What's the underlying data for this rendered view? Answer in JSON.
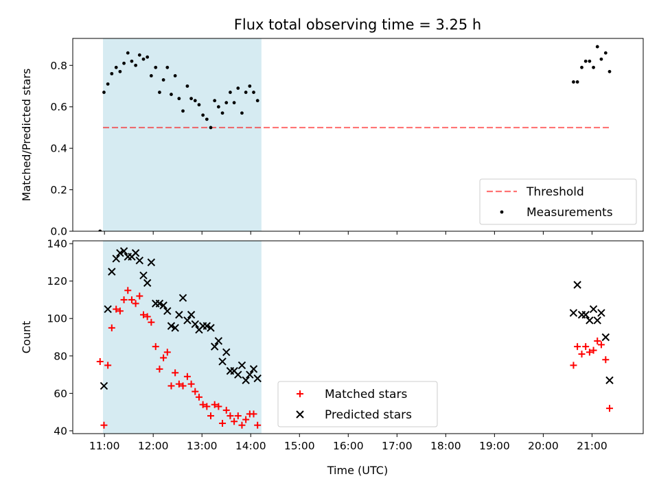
{
  "chart_data": {
    "title": "Flux total observing time = 3.25 h",
    "xlabel": "Time (UTC)",
    "x_unit": "hours UTC",
    "x_ticks": [
      {
        "value": 11,
        "label": "11:00"
      },
      {
        "value": 12,
        "label": "12:00"
      },
      {
        "value": 13,
        "label": "13:00"
      },
      {
        "value": 14,
        "label": "14:00"
      },
      {
        "value": 15,
        "label": "15:00"
      },
      {
        "value": 16,
        "label": "16:00"
      },
      {
        "value": 17,
        "label": "17:00"
      },
      {
        "value": 18,
        "label": "18:00"
      },
      {
        "value": 19,
        "label": "19:00"
      },
      {
        "value": 20,
        "label": "20:00"
      },
      {
        "value": 21,
        "label": "21:00"
      }
    ],
    "xlim": [
      10.35,
      22.05
    ],
    "highlight_span": {
      "x0": 10.97,
      "x1": 14.22,
      "color": "#add8e6"
    },
    "panels": [
      {
        "type": "scatter",
        "ylabel": "Matched/Predicted stars",
        "ylim": [
          0,
          0.93
        ],
        "y_ticks": [
          0.0,
          0.2,
          0.4,
          0.6,
          0.8
        ],
        "y_tick_labels": [
          "0.0",
          "0.2",
          "0.4",
          "0.6",
          "0.8"
        ],
        "threshold": {
          "name": "Threshold",
          "y": 0.5,
          "x0": 10.97,
          "x1": 21.37,
          "color": "#ff0000"
        },
        "series": [
          {
            "name": "Measurements",
            "marker": "dot",
            "color": "#000000",
            "points": [
              [
                10.91,
                0.0
              ],
              [
                10.99,
                0.67
              ],
              [
                11.07,
                0.71
              ],
              [
                11.15,
                0.76
              ],
              [
                11.24,
                0.79
              ],
              [
                11.32,
                0.77
              ],
              [
                11.4,
                0.81
              ],
              [
                11.48,
                0.86
              ],
              [
                11.56,
                0.82
              ],
              [
                11.64,
                0.8
              ],
              [
                11.72,
                0.85
              ],
              [
                11.8,
                0.83
              ],
              [
                11.88,
                0.84
              ],
              [
                11.96,
                0.75
              ],
              [
                12.05,
                0.79
              ],
              [
                12.13,
                0.67
              ],
              [
                12.21,
                0.73
              ],
              [
                12.29,
                0.79
              ],
              [
                12.37,
                0.66
              ],
              [
                12.45,
                0.75
              ],
              [
                12.53,
                0.64
              ],
              [
                12.61,
                0.58
              ],
              [
                12.7,
                0.7
              ],
              [
                12.78,
                0.64
              ],
              [
                12.86,
                0.63
              ],
              [
                12.94,
                0.61
              ],
              [
                13.02,
                0.56
              ],
              [
                13.1,
                0.54
              ],
              [
                13.18,
                0.5
              ],
              [
                13.26,
                0.63
              ],
              [
                13.34,
                0.6
              ],
              [
                13.42,
                0.57
              ],
              [
                13.5,
                0.62
              ],
              [
                13.58,
                0.67
              ],
              [
                13.66,
                0.62
              ],
              [
                13.74,
                0.69
              ],
              [
                13.82,
                0.57
              ],
              [
                13.9,
                0.67
              ],
              [
                13.98,
                0.7
              ],
              [
                14.06,
                0.67
              ],
              [
                14.14,
                0.63
              ],
              [
                20.62,
                0.72
              ],
              [
                20.7,
                0.72
              ],
              [
                20.79,
                0.79
              ],
              [
                20.87,
                0.82
              ],
              [
                20.95,
                0.82
              ],
              [
                21.03,
                0.79
              ],
              [
                21.11,
                0.89
              ],
              [
                21.19,
                0.83
              ],
              [
                21.28,
                0.86
              ],
              [
                21.36,
                0.77
              ]
            ]
          }
        ],
        "legend": {
          "placement": "lower right",
          "entries": [
            "Threshold",
            "Measurements"
          ]
        }
      },
      {
        "type": "scatter",
        "ylabel": "Count",
        "ylim": [
          38.5,
          141.5
        ],
        "y_ticks": [
          40,
          60,
          80,
          100,
          120,
          140
        ],
        "y_tick_labels": [
          "40",
          "60",
          "80",
          "100",
          "120",
          "140"
        ],
        "series": [
          {
            "name": "Matched stars",
            "marker": "plus",
            "color": "#ff0000",
            "points": [
              [
                10.91,
                77
              ],
              [
                10.99,
                43
              ],
              [
                11.07,
                75
              ],
              [
                11.15,
                95
              ],
              [
                11.24,
                105
              ],
              [
                11.32,
                104
              ],
              [
                11.4,
                110
              ],
              [
                11.48,
                115
              ],
              [
                11.56,
                110
              ],
              [
                11.64,
                108
              ],
              [
                11.72,
                112
              ],
              [
                11.8,
                102
              ],
              [
                11.88,
                101
              ],
              [
                11.96,
                98
              ],
              [
                12.05,
                85
              ],
              [
                12.13,
                73
              ],
              [
                12.21,
                79
              ],
              [
                12.29,
                82
              ],
              [
                12.37,
                64
              ],
              [
                12.45,
                71
              ],
              [
                12.53,
                65
              ],
              [
                12.61,
                64
              ],
              [
                12.7,
                69
              ],
              [
                12.78,
                65
              ],
              [
                12.86,
                61
              ],
              [
                12.94,
                58
              ],
              [
                13.02,
                54
              ],
              [
                13.1,
                53
              ],
              [
                13.18,
                48
              ],
              [
                13.26,
                54
              ],
              [
                13.34,
                53
              ],
              [
                13.42,
                44
              ],
              [
                13.5,
                51
              ],
              [
                13.58,
                48
              ],
              [
                13.66,
                45
              ],
              [
                13.74,
                48
              ],
              [
                13.82,
                43
              ],
              [
                13.9,
                46
              ],
              [
                13.98,
                49
              ],
              [
                14.06,
                49
              ],
              [
                14.14,
                43
              ],
              [
                20.62,
                75
              ],
              [
                20.7,
                85
              ],
              [
                20.79,
                81
              ],
              [
                20.87,
                85
              ],
              [
                20.95,
                82
              ],
              [
                21.03,
                83
              ],
              [
                21.11,
                88
              ],
              [
                21.19,
                86
              ],
              [
                21.28,
                78
              ],
              [
                21.36,
                52
              ]
            ]
          },
          {
            "name": "Predicted stars",
            "marker": "x",
            "color": "#000000",
            "points": [
              [
                10.99,
                64
              ],
              [
                11.07,
                105
              ],
              [
                11.15,
                125
              ],
              [
                11.24,
                132
              ],
              [
                11.32,
                135
              ],
              [
                11.4,
                136
              ],
              [
                11.48,
                133
              ],
              [
                11.56,
                133
              ],
              [
                11.64,
                135
              ],
              [
                11.72,
                131
              ],
              [
                11.8,
                123
              ],
              [
                11.88,
                119
              ],
              [
                11.96,
                130
              ],
              [
                12.05,
                108
              ],
              [
                12.13,
                108
              ],
              [
                12.21,
                107
              ],
              [
                12.29,
                104
              ],
              [
                12.37,
                96
              ],
              [
                12.45,
                95
              ],
              [
                12.53,
                102
              ],
              [
                12.61,
                111
              ],
              [
                12.7,
                99
              ],
              [
                12.78,
                102
              ],
              [
                12.86,
                97
              ],
              [
                12.94,
                94
              ],
              [
                13.02,
                96
              ],
              [
                13.1,
                96
              ],
              [
                13.18,
                95
              ],
              [
                13.26,
                85
              ],
              [
                13.34,
                88
              ],
              [
                13.42,
                77
              ],
              [
                13.5,
                82
              ],
              [
                13.58,
                72
              ],
              [
                13.66,
                72
              ],
              [
                13.74,
                70
              ],
              [
                13.82,
                75
              ],
              [
                13.9,
                67
              ],
              [
                13.98,
                70
              ],
              [
                14.06,
                73
              ],
              [
                14.14,
                68
              ],
              [
                20.62,
                103
              ],
              [
                20.7,
                118
              ],
              [
                20.79,
                102
              ],
              [
                20.87,
                102
              ],
              [
                20.95,
                99
              ],
              [
                21.03,
                105
              ],
              [
                21.11,
                99
              ],
              [
                21.19,
                103
              ],
              [
                21.28,
                90
              ],
              [
                21.36,
                67
              ]
            ]
          }
        ],
        "legend": {
          "placement": "lower center",
          "entries": [
            "Matched stars",
            "Predicted stars"
          ]
        }
      }
    ]
  }
}
